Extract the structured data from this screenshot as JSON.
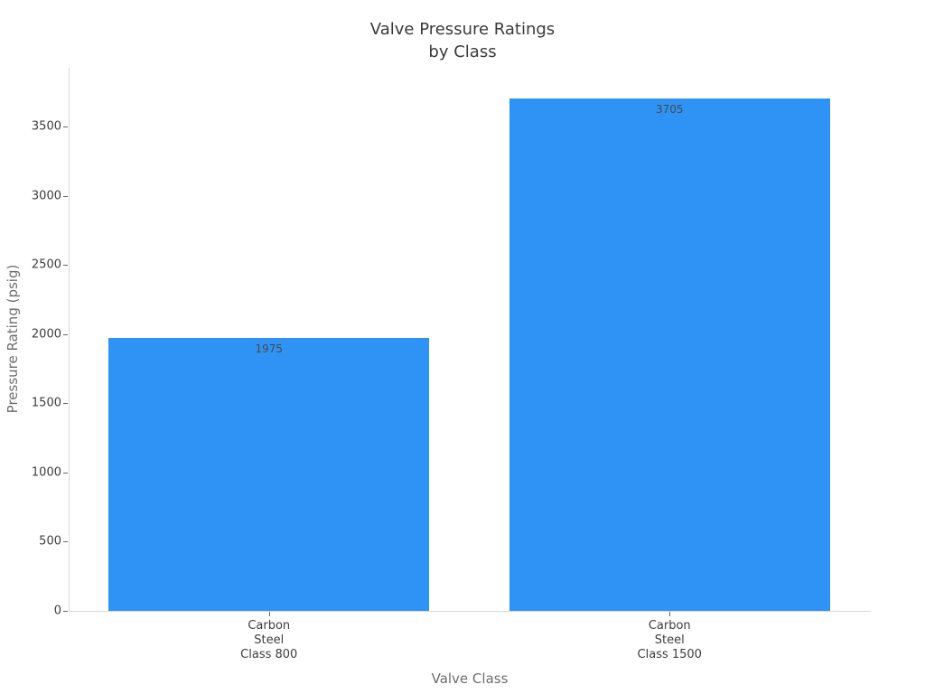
{
  "chart_data": {
    "type": "bar",
    "title": "Valve Pressure Ratings\nby Class",
    "categories": [
      "Carbon\nSteel\nClass 800",
      "Carbon\nSteel\nClass 1500"
    ],
    "values": [
      1975,
      3705
    ],
    "bar_value_labels": [
      "1975",
      "3705"
    ],
    "xlabel": "Valve Class",
    "ylabel": "Pressure Rating (psig)",
    "ylim": [
      0,
      3927
    ],
    "yticks": [
      0,
      500,
      1000,
      1500,
      2000,
      2500,
      3000,
      3500
    ],
    "grid": false,
    "legend": "none",
    "bar_color": "#2F93F5",
    "colors": {
      "background": "#FFFFFF",
      "title": "#3A3A3A",
      "tick_label": "#3D3D3D",
      "axis_label": "#6E6E6E",
      "value_label": "#4A4A4A",
      "spine": "#D9D9D9",
      "tick_mark": "#666666"
    }
  }
}
